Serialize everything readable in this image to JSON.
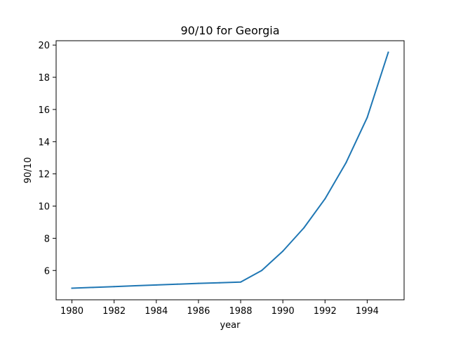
{
  "chart_data": {
    "type": "line",
    "title": "90/10 for Georgia",
    "xlabel": "year",
    "ylabel": "90/10",
    "x": [
      1980,
      1981,
      1982,
      1983,
      1984,
      1985,
      1986,
      1987,
      1988,
      1989,
      1990,
      1991,
      1992,
      1993,
      1994,
      1995
    ],
    "series": [
      {
        "values": [
          4.9,
          4.95,
          5.0,
          5.05,
          5.1,
          5.15,
          5.2,
          5.24,
          5.28,
          6.0,
          7.2,
          8.65,
          10.45,
          12.7,
          15.5,
          19.55
        ],
        "color": "#1f77b4"
      }
    ],
    "xlim": [
      1979.25,
      1995.75
    ],
    "ylim": [
      4.18,
      20.27
    ],
    "x_ticks": [
      "1980",
      "1982",
      "1984",
      "1986",
      "1988",
      "1990",
      "1992",
      "1994"
    ],
    "y_ticks": [
      "6",
      "8",
      "10",
      "12",
      "14",
      "16",
      "18",
      "20"
    ],
    "grid": false,
    "legend": "none"
  }
}
